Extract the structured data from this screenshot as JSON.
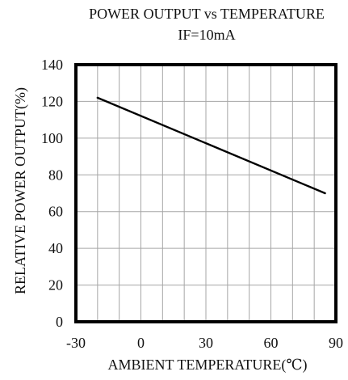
{
  "chart_data": {
    "type": "line",
    "title": "POWER OUTPUT vs TEMPERATURE",
    "subtitle": "IF=10mA",
    "xlabel": "AMBIENT TEMPERATURE(℃)",
    "ylabel": "RELATIVE POWER OUTPUT(%)",
    "xlim": [
      -30,
      90
    ],
    "ylim": [
      0,
      140
    ],
    "x_ticks": [
      -30,
      0,
      30,
      60,
      90
    ],
    "y_ticks": [
      0,
      20,
      40,
      60,
      80,
      100,
      120,
      140
    ],
    "x_minor_step": 10,
    "y_minor_step": 20,
    "grid": true,
    "series": [
      {
        "x": [
          -20,
          85
        ],
        "values": [
          122,
          70
        ]
      }
    ],
    "colors": {
      "line": "#000000",
      "grid": "#a6a6a6",
      "frame": "#000000"
    }
  }
}
